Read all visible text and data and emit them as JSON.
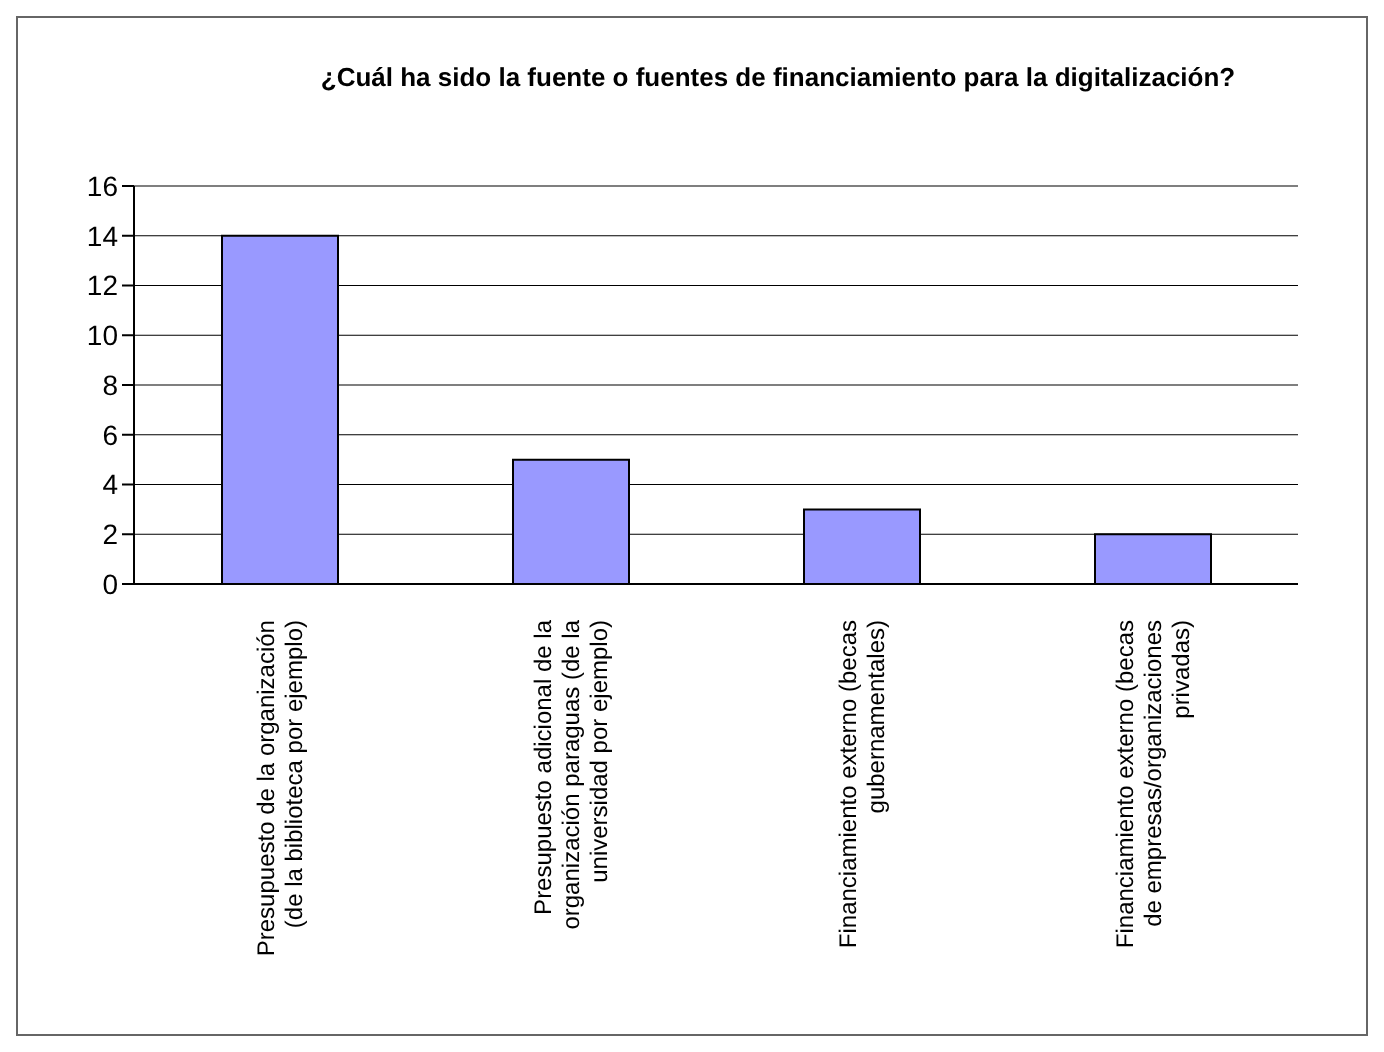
{
  "chart_data": {
    "type": "bar",
    "title": "¿Cuál ha sido la fuente o fuentes de financiamiento para la digitalización?",
    "categories": [
      "Presupuesto de la organización (de la biblioteca por ejemplo)",
      "Presupuesto adicional de la organización paraguas (de la universidad por ejemplo)",
      "Financiamiento externo (becas gubernamentales)",
      "Financiamiento externo (becas de empresas/organizaciones privadas)"
    ],
    "values": [
      14,
      5,
      3,
      2
    ],
    "color": "#9999ff",
    "ylim": [
      0,
      16
    ],
    "yticks": [
      0,
      2,
      4,
      6,
      8,
      10,
      12,
      14,
      16
    ],
    "grid": "y"
  }
}
